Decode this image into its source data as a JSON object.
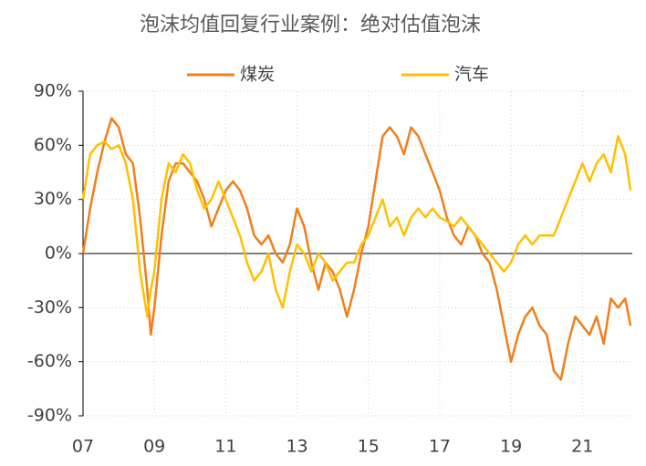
{
  "chart_data": {
    "type": "line",
    "title": "泡沫均值回复行业案例：绝对估值泡沫",
    "x": [
      2007.0,
      2007.2,
      2007.4,
      2007.6,
      2007.8,
      2008.0,
      2008.2,
      2008.4,
      2008.6,
      2008.8,
      2008.9,
      2009.0,
      2009.2,
      2009.4,
      2009.6,
      2009.8,
      2010.0,
      2010.2,
      2010.4,
      2010.6,
      2010.8,
      2011.0,
      2011.2,
      2011.4,
      2011.6,
      2011.8,
      2012.0,
      2012.2,
      2012.4,
      2012.6,
      2012.8,
      2013.0,
      2013.2,
      2013.4,
      2013.6,
      2013.8,
      2014.0,
      2014.2,
      2014.4,
      2014.6,
      2014.8,
      2015.0,
      2015.2,
      2015.4,
      2015.6,
      2015.8,
      2016.0,
      2016.2,
      2016.4,
      2016.6,
      2016.8,
      2017.0,
      2017.2,
      2017.4,
      2017.6,
      2017.8,
      2018.0,
      2018.2,
      2018.4,
      2018.6,
      2018.8,
      2019.0,
      2019.2,
      2019.4,
      2019.6,
      2019.8,
      2020.0,
      2020.2,
      2020.4,
      2020.6,
      2020.8,
      2021.0,
      2021.2,
      2021.4,
      2021.6,
      2021.8,
      2022.0,
      2022.2,
      2022.35
    ],
    "series": [
      {
        "name": "煤炭",
        "color": "#f07f1a",
        "values": [
          0,
          25,
          45,
          62,
          75,
          70,
          55,
          50,
          20,
          -20,
          -45,
          -30,
          10,
          40,
          50,
          50,
          45,
          40,
          30,
          15,
          25,
          35,
          40,
          35,
          25,
          10,
          5,
          10,
          0,
          -5,
          5,
          25,
          15,
          -5,
          -20,
          -5,
          -10,
          -20,
          -35,
          -20,
          0,
          15,
          40,
          65,
          70,
          65,
          55,
          70,
          65,
          55,
          45,
          35,
          20,
          10,
          5,
          15,
          10,
          0,
          -5,
          -20,
          -40,
          -60,
          -45,
          -35,
          -30,
          -40,
          -45,
          -65,
          -70,
          -50,
          -35,
          -40,
          -45,
          -35,
          -50,
          -25,
          -30,
          -25,
          -40
        ]
      },
      {
        "name": "汽车",
        "color": "#ffc000",
        "values": [
          30,
          55,
          60,
          62,
          58,
          60,
          50,
          30,
          -10,
          -35,
          -20,
          -10,
          30,
          50,
          45,
          55,
          50,
          35,
          25,
          30,
          40,
          30,
          20,
          10,
          -5,
          -15,
          -10,
          0,
          -20,
          -30,
          -10,
          5,
          0,
          -10,
          0,
          -5,
          -15,
          -10,
          -5,
          -5,
          5,
          10,
          20,
          30,
          15,
          20,
          10,
          20,
          25,
          20,
          25,
          20,
          18,
          15,
          20,
          15,
          10,
          5,
          0,
          -5,
          -10,
          -5,
          5,
          10,
          5,
          10,
          10,
          10,
          20,
          30,
          40,
          50,
          40,
          50,
          55,
          45,
          65,
          55,
          35
        ]
      }
    ],
    "xlim": [
      2007,
      2022.4
    ],
    "xticks": [
      {
        "value": 2007,
        "label": "07"
      },
      {
        "value": 2009,
        "label": "09"
      },
      {
        "value": 2011,
        "label": "11"
      },
      {
        "value": 2013,
        "label": "13"
      },
      {
        "value": 2015,
        "label": "15"
      },
      {
        "value": 2017,
        "label": "17"
      },
      {
        "value": 2019,
        "label": "19"
      },
      {
        "value": 2021,
        "label": "21"
      }
    ],
    "ylim": [
      -90,
      90
    ],
    "yticks": [
      {
        "value": -90,
        "label": "-90%"
      },
      {
        "value": -60,
        "label": "-60%"
      },
      {
        "value": -30,
        "label": "-30%"
      },
      {
        "value": 0,
        "label": "0%"
      },
      {
        "value": 30,
        "label": "30%"
      },
      {
        "value": 60,
        "label": "60%"
      },
      {
        "value": 90,
        "label": "90%"
      }
    ],
    "grid": true,
    "legend": "top"
  }
}
